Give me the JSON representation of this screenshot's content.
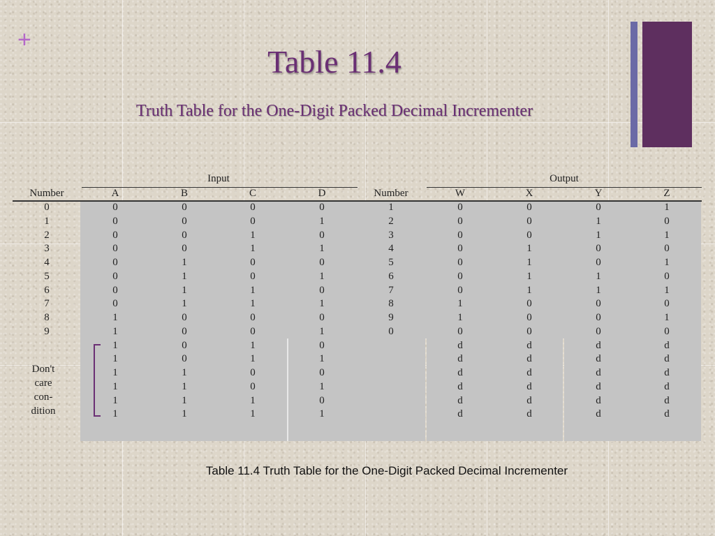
{
  "slide": {
    "plus_symbol": "+",
    "title": "Table 11.4",
    "subtitle": "Truth Table for the One-Digit Packed Decimal Incrementer",
    "caption": "Table 11.4   Truth Table for the One-Digit Packed Decimal Incrementer",
    "accent_color": "#6a2f74",
    "plus_color": "#b468c8",
    "deco_colors": [
      "#6b6aa6",
      "#5e2f5f"
    ]
  },
  "table": {
    "input_group": "Input",
    "output_group": "Output",
    "headers": [
      "Number",
      "A",
      "B",
      "C",
      "D",
      "Number",
      "W",
      "X",
      "Y",
      "Z"
    ],
    "rows": [
      [
        "0",
        "0",
        "0",
        "0",
        "0",
        "1",
        "0",
        "0",
        "0",
        "1"
      ],
      [
        "1",
        "0",
        "0",
        "0",
        "1",
        "2",
        "0",
        "0",
        "1",
        "0"
      ],
      [
        "2",
        "0",
        "0",
        "1",
        "0",
        "3",
        "0",
        "0",
        "1",
        "1"
      ],
      [
        "3",
        "0",
        "0",
        "1",
        "1",
        "4",
        "0",
        "1",
        "0",
        "0"
      ],
      [
        "4",
        "0",
        "1",
        "0",
        "0",
        "5",
        "0",
        "1",
        "0",
        "1"
      ],
      [
        "5",
        "0",
        "1",
        "0",
        "1",
        "6",
        "0",
        "1",
        "1",
        "0"
      ],
      [
        "6",
        "0",
        "1",
        "1",
        "0",
        "7",
        "0",
        "1",
        "1",
        "1"
      ],
      [
        "7",
        "0",
        "1",
        "1",
        "1",
        "8",
        "1",
        "0",
        "0",
        "0"
      ],
      [
        "8",
        "1",
        "0",
        "0",
        "0",
        "9",
        "1",
        "0",
        "0",
        "1"
      ],
      [
        "9",
        "1",
        "0",
        "0",
        "1",
        "0",
        "0",
        "0",
        "0",
        "0"
      ],
      [
        "",
        "1",
        "0",
        "1",
        "0",
        "",
        "d",
        "d",
        "d",
        "d"
      ],
      [
        "",
        "1",
        "0",
        "1",
        "1",
        "",
        "d",
        "d",
        "d",
        "d"
      ],
      [
        "",
        "1",
        "1",
        "0",
        "0",
        "",
        "d",
        "d",
        "d",
        "d"
      ],
      [
        "",
        "1",
        "1",
        "0",
        "1",
        "",
        "d",
        "d",
        "d",
        "d"
      ],
      [
        "",
        "1",
        "1",
        "1",
        "0",
        "",
        "d",
        "d",
        "d",
        "d"
      ],
      [
        "",
        "1",
        "1",
        "1",
        "1",
        "",
        "d",
        "d",
        "d",
        "d"
      ]
    ],
    "dont_care_label": [
      "Don't",
      "care",
      "con-",
      "dition"
    ]
  }
}
